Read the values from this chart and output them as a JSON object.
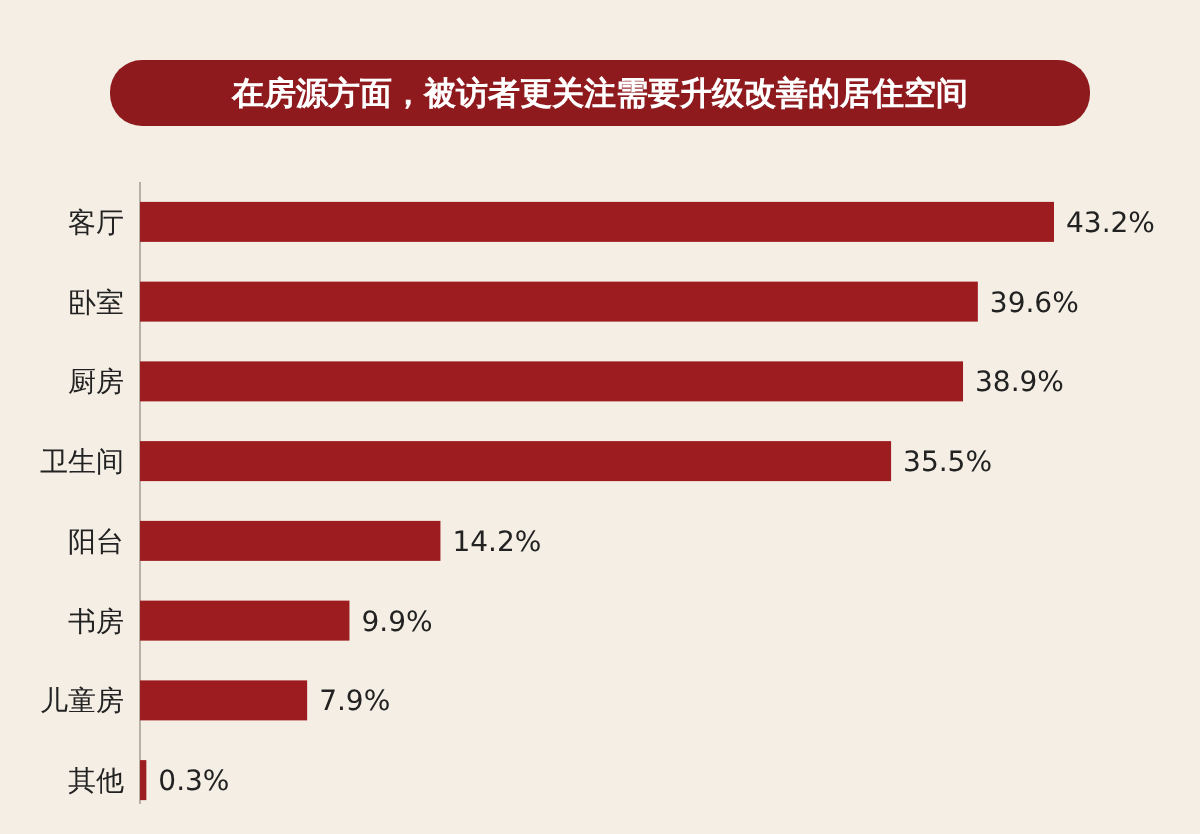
{
  "chart_data": {
    "type": "bar",
    "orientation": "horizontal",
    "title": "在房源方面，被访者更关注需要升级改善的居住空间",
    "categories": [
      "客厅",
      "卧室",
      "厨房",
      "卫生间",
      "阳台",
      "书房",
      "儿童房",
      "其他"
    ],
    "values": [
      43.2,
      39.6,
      38.9,
      35.5,
      14.2,
      9.9,
      7.9,
      0.3
    ],
    "value_labels": [
      "43.2%",
      "39.6%",
      "38.9%",
      "35.5%",
      "14.2%",
      "9.9%",
      "7.9%",
      "0.3%"
    ],
    "color": "#9c1c20"
  }
}
